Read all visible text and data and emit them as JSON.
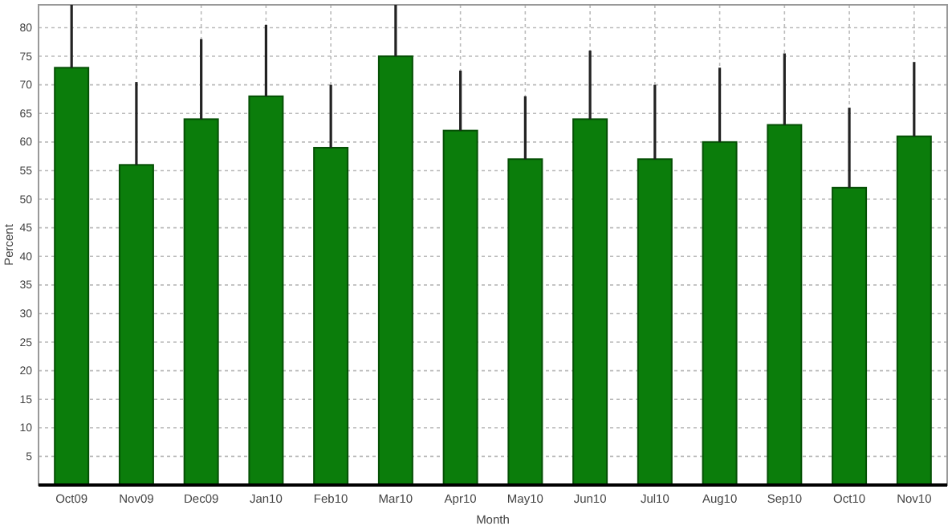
{
  "chart_data": {
    "type": "bar",
    "xlabel": "Month",
    "ylabel": "Percent",
    "categories": [
      "Oct09",
      "Nov09",
      "Dec09",
      "Jan10",
      "Feb10",
      "Mar10",
      "Apr10",
      "May10",
      "Jun10",
      "Jul10",
      "Aug10",
      "Sep10",
      "Oct10",
      "Nov10"
    ],
    "values": [
      73,
      56,
      64,
      68,
      59,
      75,
      62,
      57,
      64,
      57,
      60,
      63,
      52,
      61
    ],
    "errors": [
      [
        73,
        84
      ],
      [
        56,
        70.5
      ],
      [
        64,
        78
      ],
      [
        68,
        80.5
      ],
      [
        59,
        70
      ],
      [
        75,
        84
      ],
      [
        62,
        72.5
      ],
      [
        57,
        68
      ],
      [
        64,
        76
      ],
      [
        57,
        70
      ],
      [
        60,
        73
      ],
      [
        63,
        75.5
      ],
      [
        52,
        66
      ],
      [
        61,
        74
      ]
    ],
    "color": "#0b7d0b",
    "ylim": [
      0,
      84
    ],
    "yticks": [
      5,
      10,
      15,
      20,
      25,
      30,
      35,
      40,
      45,
      50,
      55,
      60,
      65,
      70,
      75,
      80
    ],
    "grid": true
  }
}
